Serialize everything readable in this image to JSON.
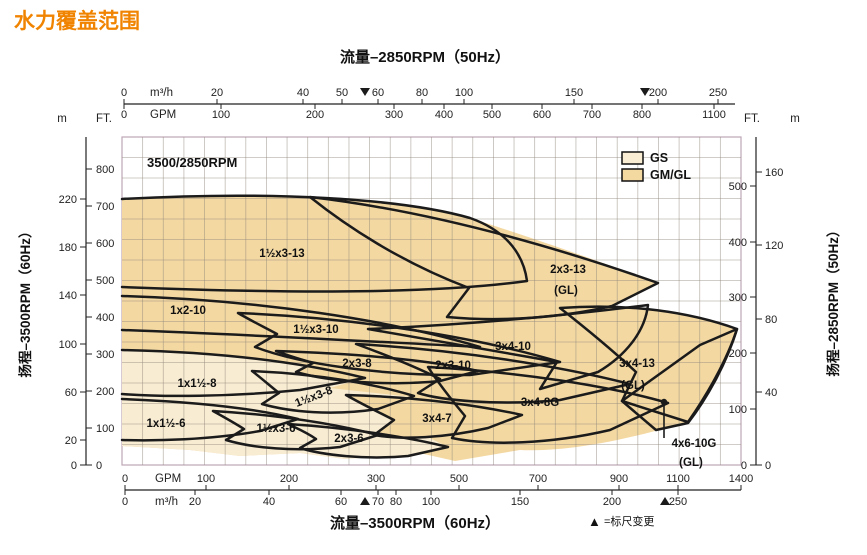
{
  "page": {
    "title": "水力覆盖范围",
    "title_color": "#F08300"
  },
  "chart": {
    "corner_label": "3500/2850RPM",
    "legend": [
      {
        "label": "GS",
        "color": "#f9edd3"
      },
      {
        "label": "GM/GL",
        "color": "#f3d8a0"
      }
    ],
    "top_axis": {
      "title": "流量–2850RPM（50Hz）",
      "unit_m3h": "m³/h",
      "unit_gpm": "GPM",
      "m3h_ticks": [
        "0",
        "20",
        "40",
        "50",
        "60",
        "80",
        "100",
        "150",
        "200",
        "250"
      ],
      "m3h_scale_change": [
        "60",
        "200"
      ],
      "gpm_ticks": [
        "0",
        "100",
        "200",
        "300",
        "400",
        "500",
        "600",
        "700",
        "800",
        "1100"
      ]
    },
    "bottom_axis": {
      "title": "流量–3500RPM（60Hz）",
      "unit_gpm": "GPM",
      "unit_m3h": "m³/h",
      "gpm_ticks": [
        "0",
        "100",
        "200",
        "300",
        "500",
        "700",
        "900",
        "1100",
        "1400"
      ],
      "m3h_ticks": [
        "0",
        "20",
        "40",
        "60",
        "70",
        "80",
        "100",
        "150",
        "200",
        "250"
      ],
      "m3h_scale_change": [
        "70",
        "250"
      ]
    },
    "left_axis": {
      "title": "扬程–3500RPM（60Hz）",
      "unit_m": "m",
      "unit_ft": "FT.",
      "m_ticks": [
        "220",
        "180",
        "140",
        "100",
        "60",
        "20",
        "0"
      ],
      "ft_ticks": [
        "800",
        "700",
        "600",
        "500",
        "400",
        "300",
        "200",
        "100",
        "0"
      ]
    },
    "right_axis": {
      "title": "扬程–2850RPM（50Hz）",
      "unit_ft": "FT.",
      "unit_m": "m",
      "ft_ticks": [
        "500",
        "400",
        "300",
        "200",
        "100",
        "0"
      ],
      "m_ticks": [
        "160",
        "120",
        "80",
        "40",
        "0"
      ]
    },
    "scale_note": {
      "marker": "▲",
      "text": "=标尺变更"
    },
    "regions": [
      {
        "label": "1½x3-13"
      },
      {
        "label": "2x3-13",
        "sub": "(GL)"
      },
      {
        "label": "1x2-10"
      },
      {
        "label": "1½x3-10"
      },
      {
        "label": "2x3-8"
      },
      {
        "label": "2x3-10"
      },
      {
        "label": "3x4-10"
      },
      {
        "label": "3x4-13",
        "sub": "(GL)"
      },
      {
        "label": "1x1½-8"
      },
      {
        "label": "1½x3-8"
      },
      {
        "label": "3x4-8G"
      },
      {
        "label": "1x1½-6"
      },
      {
        "label": "1½x3-6"
      },
      {
        "label": "2x3-6"
      },
      {
        "label": "3x4-7"
      },
      {
        "label": "4x6-10G",
        "sub": "(GL)"
      }
    ]
  },
  "chart_data": {
    "type": "area",
    "title": "水力覆盖范围 (hydraulic coverage map)",
    "series_label": "3500/2850RPM",
    "legend": [
      "GS",
      "GM/GL"
    ],
    "legend_position": "top-right",
    "grid": true,
    "x_axes": [
      {
        "position": "top",
        "label": "流量–2850RPM（50Hz）",
        "m3h_ticks": [
          0,
          20,
          40,
          50,
          60,
          80,
          100,
          150,
          200,
          250
        ],
        "gpm_ticks": [
          0,
          100,
          200,
          300,
          400,
          500,
          600,
          700,
          800,
          1100
        ],
        "scale_change_at_m3h": [
          60,
          200
        ]
      },
      {
        "position": "bottom",
        "label": "流量–3500RPM（60Hz）",
        "gpm_ticks": [
          0,
          100,
          200,
          300,
          500,
          700,
          900,
          1100,
          1400
        ],
        "m3h_ticks": [
          0,
          20,
          40,
          60,
          70,
          80,
          100,
          150,
          200,
          250
        ],
        "scale_change_at_m3h": [
          70,
          250
        ]
      }
    ],
    "y_axes": [
      {
        "position": "left",
        "label": "扬程–3500RPM（60Hz）",
        "m_ticks": [
          0,
          20,
          60,
          100,
          140,
          180,
          220
        ],
        "ft_ticks": [
          0,
          100,
          200,
          300,
          400,
          500,
          600,
          700,
          800
        ]
      },
      {
        "position": "right",
        "label": "扬程–2850RPM（50Hz）",
        "ft_ticks": [
          0,
          100,
          200,
          300,
          400,
          500
        ],
        "m_ticks": [
          0,
          40,
          80,
          120,
          160
        ]
      }
    ],
    "coverage_regions": [
      {
        "model": "1½x3-13",
        "family": "GM/GL"
      },
      {
        "model": "2x3-13 (GL)",
        "family": "GM/GL"
      },
      {
        "model": "1x2-10",
        "family": "GM/GL"
      },
      {
        "model": "1½x3-10",
        "family": "GM/GL"
      },
      {
        "model": "2x3-8",
        "family": "GM/GL"
      },
      {
        "model": "2x3-10",
        "family": "GM/GL"
      },
      {
        "model": "3x4-10",
        "family": "GM/GL"
      },
      {
        "model": "3x4-13 (GL)",
        "family": "GM/GL"
      },
      {
        "model": "1x1½-8",
        "family": "GS"
      },
      {
        "model": "1½x3-8",
        "family": "GS"
      },
      {
        "model": "3x4-8G",
        "family": "GM/GL"
      },
      {
        "model": "1x1½-6",
        "family": "GS"
      },
      {
        "model": "1½x3-6",
        "family": "GS"
      },
      {
        "model": "2x3-6",
        "family": "GS"
      },
      {
        "model": "3x4-7",
        "family": "GM/GL"
      },
      {
        "model": "4x6-10G (GL)",
        "family": "GM/GL"
      }
    ],
    "note": "▲ =标尺变更"
  }
}
